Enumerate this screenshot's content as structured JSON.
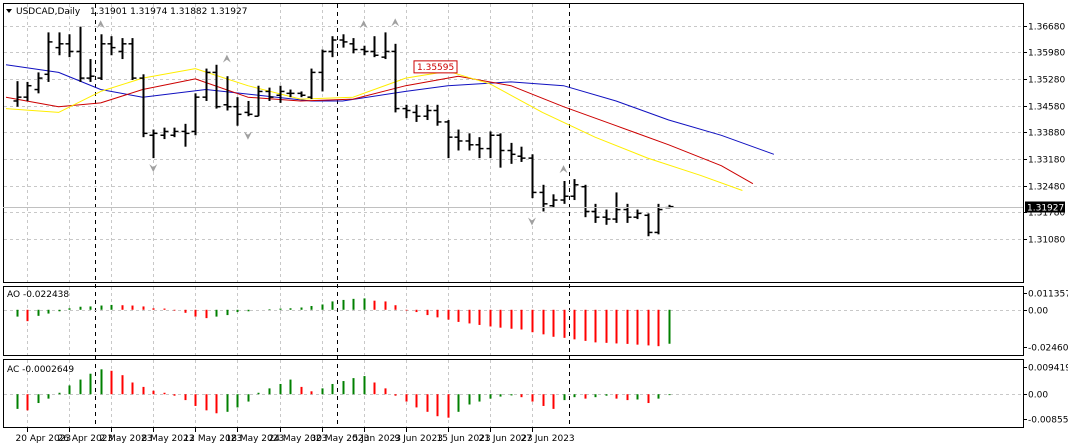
{
  "chart_data": {
    "type": "ohlc",
    "symbol_label": "USDCAD,Daily",
    "ohlc_label": "1.31901 1.31974 1.31882 1.31927",
    "main_price_axis": {
      "ticks": [
        "1.36680",
        "1.35980",
        "1.35280",
        "1.34580",
        "1.33880",
        "1.33180",
        "1.32480",
        "1.31780",
        "1.31080"
      ],
      "ylim": [
        1.3071,
        1.3693
      ]
    },
    "current_price_label": "1.31927",
    "current_price": 1.31927,
    "annotation_price_label": "1.35595",
    "annotation_price": 1.35595,
    "x_tick_labels": [
      "20 Apr 2023",
      "26 Apr 2023",
      "2 May 2023",
      "8 May 2023",
      "12 May 2023",
      "18 May 2023",
      "24 May 2023",
      "30 May 2023",
      "5 Jun 2023",
      "9 Jun 2023",
      "15 Jun 2023",
      "21 Jun 2023",
      "27 Jun 2023"
    ],
    "x_tick_bar_index": [
      1,
      5,
      9,
      13,
      17,
      21,
      25,
      29,
      33,
      37,
      41,
      45,
      49
    ],
    "vertical_dashed_bar_index": [
      7,
      30,
      52
    ],
    "bars": [
      {
        "o": 1.347,
        "h": 1.3522,
        "l": 1.3455,
        "c": 1.348
      },
      {
        "o": 1.348,
        "h": 1.352,
        "l": 1.347,
        "c": 1.351
      },
      {
        "o": 1.35,
        "h": 1.3545,
        "l": 1.349,
        "c": 1.353
      },
      {
        "o": 1.354,
        "h": 1.365,
        "l": 1.352,
        "c": 1.3625
      },
      {
        "o": 1.361,
        "h": 1.365,
        "l": 1.359,
        "c": 1.362
      },
      {
        "o": 1.362,
        "h": 1.3645,
        "l": 1.3585,
        "c": 1.36
      },
      {
        "o": 1.36,
        "h": 1.3665,
        "l": 1.352,
        "c": 1.353
      },
      {
        "o": 1.353,
        "h": 1.358,
        "l": 1.352,
        "c": 1.3535
      },
      {
        "o": 1.353,
        "h": 1.3645,
        "l": 1.3525,
        "c": 1.362
      },
      {
        "o": 1.362,
        "h": 1.364,
        "l": 1.359,
        "c": 1.361
      },
      {
        "o": 1.36,
        "h": 1.3635,
        "l": 1.358,
        "c": 1.362
      },
      {
        "o": 1.362,
        "h": 1.3635,
        "l": 1.3525,
        "c": 1.353
      },
      {
        "o": 1.353,
        "h": 1.354,
        "l": 1.3375,
        "c": 1.3385
      },
      {
        "o": 1.338,
        "h": 1.3395,
        "l": 1.332,
        "c": 1.3385
      },
      {
        "o": 1.338,
        "h": 1.34,
        "l": 1.337,
        "c": 1.339
      },
      {
        "o": 1.338,
        "h": 1.34,
        "l": 1.3375,
        "c": 1.339
      },
      {
        "o": 1.339,
        "h": 1.341,
        "l": 1.335,
        "c": 1.3385
      },
      {
        "o": 1.339,
        "h": 1.349,
        "l": 1.338,
        "c": 1.348
      },
      {
        "o": 1.348,
        "h": 1.3555,
        "l": 1.347,
        "c": 1.3545
      },
      {
        "o": 1.3545,
        "h": 1.3565,
        "l": 1.345,
        "c": 1.3455
      },
      {
        "o": 1.346,
        "h": 1.3535,
        "l": 1.3445,
        "c": 1.3455
      },
      {
        "o": 1.3455,
        "h": 1.348,
        "l": 1.3405,
        "c": 1.3435
      },
      {
        "o": 1.344,
        "h": 1.347,
        "l": 1.343,
        "c": 1.3435
      },
      {
        "o": 1.343,
        "h": 1.351,
        "l": 1.343,
        "c": 1.3495
      },
      {
        "o": 1.3495,
        "h": 1.3505,
        "l": 1.347,
        "c": 1.348
      },
      {
        "o": 1.3485,
        "h": 1.351,
        "l": 1.3465,
        "c": 1.3495
      },
      {
        "o": 1.349,
        "h": 1.35,
        "l": 1.348,
        "c": 1.349
      },
      {
        "o": 1.349,
        "h": 1.3495,
        "l": 1.348,
        "c": 1.3485
      },
      {
        "o": 1.348,
        "h": 1.3555,
        "l": 1.3475,
        "c": 1.3545
      },
      {
        "o": 1.3545,
        "h": 1.3605,
        "l": 1.3495,
        "c": 1.36
      },
      {
        "o": 1.36,
        "h": 1.364,
        "l": 1.3585,
        "c": 1.363
      },
      {
        "o": 1.363,
        "h": 1.3645,
        "l": 1.361,
        "c": 1.3625
      },
      {
        "o": 1.362,
        "h": 1.3635,
        "l": 1.3595,
        "c": 1.3605
      },
      {
        "o": 1.3605,
        "h": 1.3615,
        "l": 1.359,
        "c": 1.36
      },
      {
        "o": 1.36,
        "h": 1.364,
        "l": 1.3585,
        "c": 1.359
      },
      {
        "o": 1.3585,
        "h": 1.365,
        "l": 1.358,
        "c": 1.36
      },
      {
        "o": 1.36,
        "h": 1.362,
        "l": 1.344,
        "c": 1.345
      },
      {
        "o": 1.345,
        "h": 1.346,
        "l": 1.3425,
        "c": 1.3445
      },
      {
        "o": 1.344,
        "h": 1.346,
        "l": 1.3415,
        "c": 1.343
      },
      {
        "o": 1.343,
        "h": 1.346,
        "l": 1.342,
        "c": 1.3445
      },
      {
        "o": 1.3445,
        "h": 1.346,
        "l": 1.3405,
        "c": 1.3415
      },
      {
        "o": 1.3415,
        "h": 1.342,
        "l": 1.332,
        "c": 1.3375
      },
      {
        "o": 1.3375,
        "h": 1.3395,
        "l": 1.334,
        "c": 1.3365
      },
      {
        "o": 1.3365,
        "h": 1.3385,
        "l": 1.334,
        "c": 1.3355
      },
      {
        "o": 1.3355,
        "h": 1.3375,
        "l": 1.332,
        "c": 1.3345
      },
      {
        "o": 1.3345,
        "h": 1.339,
        "l": 1.332,
        "c": 1.338
      },
      {
        "o": 1.338,
        "h": 1.3385,
        "l": 1.3295,
        "c": 1.334
      },
      {
        "o": 1.334,
        "h": 1.336,
        "l": 1.3305,
        "c": 1.333
      },
      {
        "o": 1.3325,
        "h": 1.335,
        "l": 1.331,
        "c": 1.332
      },
      {
        "o": 1.332,
        "h": 1.333,
        "l": 1.3215,
        "c": 1.323
      },
      {
        "o": 1.323,
        "h": 1.325,
        "l": 1.318,
        "c": 1.32
      },
      {
        "o": 1.3195,
        "h": 1.3225,
        "l": 1.319,
        "c": 1.321
      },
      {
        "o": 1.321,
        "h": 1.326,
        "l": 1.32,
        "c": 1.322
      },
      {
        "o": 1.322,
        "h": 1.3265,
        "l": 1.321,
        "c": 1.325
      },
      {
        "o": 1.3245,
        "h": 1.325,
        "l": 1.3165,
        "c": 1.318
      },
      {
        "o": 1.318,
        "h": 1.32,
        "l": 1.315,
        "c": 1.3165
      },
      {
        "o": 1.3165,
        "h": 1.3185,
        "l": 1.3145,
        "c": 1.316
      },
      {
        "o": 1.316,
        "h": 1.323,
        "l": 1.315,
        "c": 1.3185
      },
      {
        "o": 1.3185,
        "h": 1.32,
        "l": 1.315,
        "c": 1.3165
      },
      {
        "o": 1.3165,
        "h": 1.3185,
        "l": 1.316,
        "c": 1.3175
      },
      {
        "o": 1.317,
        "h": 1.3175,
        "l": 1.3115,
        "c": 1.3125
      },
      {
        "o": 1.3125,
        "h": 1.32,
        "l": 1.312,
        "c": 1.3185
      },
      {
        "o": 1.31901,
        "h": 1.31974,
        "l": 1.31882,
        "c": 1.31927
      }
    ],
    "moving_averages": [
      {
        "color": "#1010c0",
        "points": [
          [
            -1,
            1.3565
          ],
          [
            4,
            1.3545
          ],
          [
            8,
            1.35
          ],
          [
            12,
            1.348
          ],
          [
            18,
            1.35
          ],
          [
            23,
            1.3485
          ],
          [
            28,
            1.347
          ],
          [
            31,
            1.347
          ],
          [
            37,
            1.3495
          ],
          [
            41,
            1.351
          ],
          [
            47,
            1.352
          ],
          [
            52,
            1.351
          ],
          [
            57,
            1.347
          ],
          [
            62,
            1.342
          ],
          [
            67,
            1.338
          ],
          [
            72,
            1.333
          ]
        ]
      },
      {
        "color": "#cc0000",
        "points": [
          [
            -1,
            1.348
          ],
          [
            4,
            1.3455
          ],
          [
            8,
            1.3465
          ],
          [
            12,
            1.35
          ],
          [
            17,
            1.3528
          ],
          [
            22,
            1.348
          ],
          [
            27,
            1.347
          ],
          [
            32,
            1.3475
          ],
          [
            37,
            1.351
          ],
          [
            42,
            1.3535
          ],
          [
            47,
            1.351
          ],
          [
            52,
            1.3455
          ],
          [
            57,
            1.3405
          ],
          [
            62,
            1.3355
          ],
          [
            67,
            1.33
          ],
          [
            70,
            1.3253
          ]
        ]
      },
      {
        "color": "#ffee00",
        "points": [
          [
            -1,
            1.345
          ],
          [
            4,
            1.344
          ],
          [
            8,
            1.3495
          ],
          [
            12,
            1.353
          ],
          [
            17,
            1.3555
          ],
          [
            22,
            1.351
          ],
          [
            27,
            1.3475
          ],
          [
            32,
            1.348
          ],
          [
            37,
            1.353
          ],
          [
            41,
            1.3548
          ],
          [
            45,
            1.3515
          ],
          [
            50,
            1.344
          ],
          [
            55,
            1.3375
          ],
          [
            60,
            1.332
          ],
          [
            65,
            1.3275
          ],
          [
            69,
            1.3235
          ]
        ]
      }
    ],
    "fractals": [
      {
        "i": 13,
        "dir": "down",
        "price": 1.332
      },
      {
        "i": 20,
        "dir": "up",
        "price": 1.3555
      },
      {
        "i": 22,
        "dir": "down",
        "price": 1.3405
      },
      {
        "i": 33,
        "dir": "up",
        "price": 1.3645
      },
      {
        "i": 36,
        "dir": "up",
        "price": 1.365
      },
      {
        "i": 8,
        "dir": "up",
        "price": 1.3645
      },
      {
        "i": 49,
        "dir": "down",
        "price": 1.318
      },
      {
        "i": 52,
        "dir": "up",
        "price": 1.3265
      }
    ],
    "ao": {
      "label": "AO -0.022438",
      "ticks": [
        "0.011357",
        "0.00",
        "-0.024604"
      ],
      "ylim": [
        -0.0285,
        0.0137
      ],
      "values": [
        -0.0045,
        -0.0075,
        -0.004,
        -0.0025,
        -0.001,
        0.001,
        0.002,
        0.0022,
        0.0028,
        0.0032,
        0.003,
        0.0028,
        0.0022,
        0.001,
        0.0008,
        -0.0005,
        -0.002,
        -0.0045,
        -0.0055,
        -0.0045,
        -0.0035,
        -0.0015,
        -0.001,
        0.0,
        0.0004,
        0.0008,
        0.001,
        0.0015,
        0.0025,
        0.0035,
        0.0055,
        0.0065,
        0.0072,
        0.0075,
        0.006,
        0.0055,
        0.003,
        -0.0005,
        -0.0015,
        -0.0035,
        -0.005,
        -0.0065,
        -0.008,
        -0.009,
        -0.01,
        -0.011,
        -0.0118,
        -0.0125,
        -0.013,
        -0.0148,
        -0.0162,
        -0.0178,
        -0.0185,
        -0.0195,
        -0.0205,
        -0.0215,
        -0.0218,
        -0.0222,
        -0.0225,
        -0.023,
        -0.0235,
        -0.024,
        -0.0224
      ]
    },
    "ac": {
      "label": "AC -0.0002649",
      "ticks": [
        "0.0094191",
        "0.00",
        "-0.0085557"
      ],
      "ylim": [
        -0.0105,
        0.011
      ],
      "values": [
        -0.005,
        -0.0055,
        -0.003,
        -0.0015,
        0.0005,
        0.003,
        0.005,
        0.007,
        0.0085,
        0.008,
        0.0065,
        0.004,
        0.0025,
        0.0012,
        0.0005,
        -0.0005,
        -0.002,
        -0.004,
        -0.0055,
        -0.0065,
        -0.006,
        -0.0045,
        -0.0025,
        0.0005,
        0.002,
        0.0035,
        0.005,
        0.0025,
        0.001,
        0.002,
        0.0035,
        0.0045,
        0.0055,
        0.0062,
        0.004,
        0.002,
        -0.0005,
        -0.0025,
        -0.0045,
        -0.006,
        -0.0075,
        -0.008,
        -0.006,
        -0.0035,
        -0.0025,
        -0.0015,
        -0.0008,
        -0.0004,
        -0.001,
        -0.0025,
        -0.004,
        -0.005,
        -0.002,
        -0.001,
        -0.0015,
        -0.001,
        -0.0005,
        -0.0015,
        -0.002,
        -0.0018,
        -0.003,
        -0.0015,
        -0.0003
      ]
    }
  }
}
